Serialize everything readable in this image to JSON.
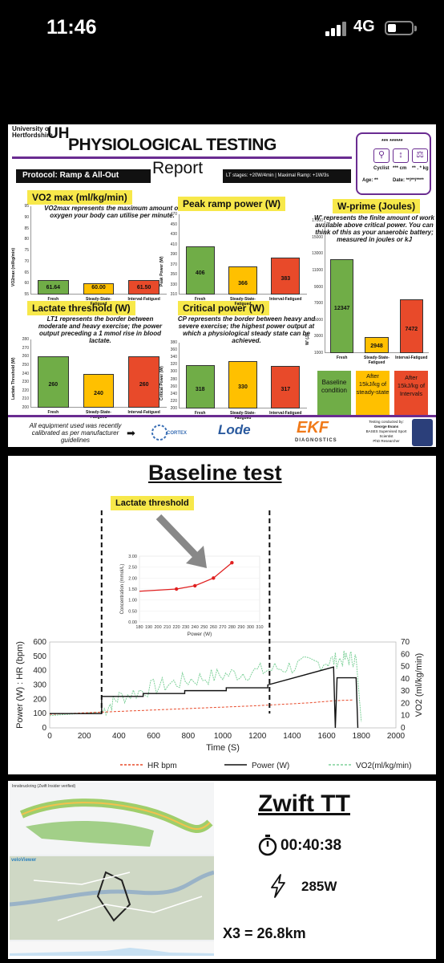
{
  "status": {
    "time": "11:46",
    "network": "4G"
  },
  "report": {
    "university": [
      "University of",
      "Hertfordshire"
    ],
    "uh_logo": "UH",
    "title": "PHYSIOLOGICAL TESTING",
    "subtitle": "Report",
    "protocol": "Protocol: Ramp & All-Out",
    "lt_stages": "LT stages: +20W/4min | Maximal Ramp: +1W/3s",
    "card": {
      "stars": "*** ******",
      "cyclist": "Cyclist",
      "cm": "*** cm",
      "kg": "** . * kg",
      "age": "Age: **",
      "date": "Date: **/**/****"
    },
    "colors": {
      "fresh": "#70ad47",
      "steady": "#ffc000",
      "interval": "#e84a2a",
      "purple": "#6a2c91",
      "yellow": "#f7e84a"
    },
    "categories": [
      "Fresh",
      "Steady-State-Fatigued",
      "Interval-Fatigued"
    ],
    "vo2max": {
      "title": "VO2 max (ml/kg/min)",
      "desc": "VO2max represents the maximum amount of oxygen your body can utilise per minute.",
      "ylabel": "VO2max (ml/kg/min)",
      "ticks": [
        "95",
        "90",
        "85",
        "80",
        "75",
        "70",
        "65",
        "60",
        "55"
      ],
      "ylim": [
        55,
        95
      ],
      "values": [
        61.64,
        60.0,
        61.5
      ],
      "labels": [
        "61.64",
        "60.00",
        "61.50"
      ]
    },
    "peakramp": {
      "title": "Peak ramp power (W)",
      "ylabel": "Peak Power (W)",
      "ticks": [
        "470",
        "450",
        "430",
        "410",
        "390",
        "370",
        "350",
        "330",
        "310"
      ],
      "ylim": [
        310,
        470
      ],
      "values": [
        406,
        366,
        383
      ],
      "labels": [
        "406",
        "366",
        "383"
      ]
    },
    "wprime": {
      "title": "W-prime (Joules)",
      "desc": "W' represents the finite amount of work available above critical power. You can think of this as your anaerobic battery; measured in joules or kJ",
      "ylabel": "W' (J)",
      "ticks": [
        "17000",
        "15000",
        "13000",
        "11000",
        "9000",
        "7000",
        "5000",
        "3000",
        "1000"
      ],
      "ylim": [
        1000,
        17000
      ],
      "values": [
        12347,
        2948,
        7472
      ],
      "labels": [
        "12347",
        "2948",
        "7472"
      ]
    },
    "lactate": {
      "title": "Lactate threshold (W)",
      "desc": "LT1 represents the border between moderate and heavy exercise; the power output preceding a 1 mmol rise in blood lactate.",
      "ylabel": "Lactate Threshold (W)",
      "ticks": [
        "280",
        "270",
        "260",
        "250",
        "240",
        "230",
        "220",
        "210",
        "200"
      ],
      "ylim": [
        200,
        280
      ],
      "values": [
        260,
        240,
        260
      ],
      "labels": [
        "260",
        "240",
        "260"
      ]
    },
    "critical": {
      "title": "Critical power (W)",
      "desc": "CP represents the border between heavy and severe exercise; the highest power output at which a physiological steady state can be achieved.",
      "ylabel": "Critical Power (W)",
      "ticks": [
        "380",
        "360",
        "340",
        "320",
        "300",
        "280",
        "260",
        "240",
        "220",
        "200"
      ],
      "ylim": [
        200,
        380
      ],
      "values": [
        318,
        330,
        317
      ],
      "labels": [
        "318",
        "330",
        "317"
      ]
    },
    "legend": {
      "baseline": "Baseline condition",
      "after_ss": "After 15kJ/kg of steady-state",
      "after_int": "After 15kJ/kg of Intervals"
    },
    "footer": {
      "note": "All equipment used was recently calibrated as per manufacturer guidelines",
      "arrow": "➡",
      "cortex": "CORTEX",
      "lode": "Lode",
      "ekf": "EKF",
      "diagnostics": "DIAGNOSTICS",
      "credit": [
        "Testing conducted by:",
        "George Evans",
        "BASES Supervised Sport Scientist",
        "PhD Researcher"
      ]
    }
  },
  "baseline": {
    "title": "Baseline test",
    "lactate_label": "Lactate threshold",
    "chart_data": [
      {
        "type": "line",
        "title": "",
        "xlabel": "Power (W)",
        "ylabel": "Concentration (mmol/L)",
        "xlim": [
          180,
          310
        ],
        "ylim": [
          0,
          3
        ],
        "x_ticks": [
          "180",
          "190",
          "200",
          "210",
          "220",
          "230",
          "240",
          "250",
          "260",
          "270",
          "280",
          "290",
          "300",
          "310"
        ],
        "y_ticks": [
          "0.00",
          "0.50",
          "1.00",
          "1.50",
          "2.00",
          "2.50",
          "3.00"
        ],
        "series": [
          {
            "x": [
              180,
              200,
              220,
              240,
              260,
              280
            ],
            "y": [
              1.4,
              1.45,
              1.5,
              1.65,
              2.0,
              2.7
            ]
          }
        ]
      },
      {
        "type": "line",
        "xlabel": "Time (S)",
        "ylabel": "Power (W) : HR (bpm)",
        "y2label": "VO2 (ml/kg/min)",
        "xlim": [
          0,
          2000
        ],
        "ylim": [
          0,
          600
        ],
        "y2lim": [
          0,
          70
        ],
        "x_ticks": [
          "0",
          "200",
          "400",
          "600",
          "800",
          "1000",
          "1200",
          "1400",
          "1600",
          "1800",
          "2000"
        ],
        "y_ticks": [
          "0",
          "100",
          "200",
          "300",
          "400",
          "500",
          "600"
        ],
        "y2_ticks": [
          "0",
          "10",
          "20",
          "30",
          "40",
          "50",
          "60",
          "70"
        ],
        "legend": [
          "HR bpm",
          "Power (W)",
          "VO2(ml/kg/min)"
        ],
        "lactate_markers_x": [
          300,
          1270
        ],
        "series": [
          {
            "name": "HR bpm",
            "color": "#e84a2a",
            "x": [
              0,
              300,
              600,
              900,
              1200,
              1500,
              1650,
              1750
            ],
            "y": [
              95,
              110,
              125,
              140,
              155,
              175,
              190,
              195
            ]
          },
          {
            "name": "Power (W)",
            "color": "#111111",
            "x": [
              0,
              300,
              300,
              540,
              540,
              780,
              780,
              1020,
              1020,
              1260,
              1260,
              1640,
              1650,
              1660,
              1770,
              1780
            ],
            "y": [
              100,
              100,
              220,
              220,
              240,
              240,
              260,
              260,
              280,
              280,
              300,
              425,
              0,
              350,
              350,
              0
            ]
          },
          {
            "name": "VO2(ml/kg/min)",
            "color": "#7fd19a",
            "x": [
              0,
              100,
              300,
              400,
              600,
              800,
              1000,
              1200,
              1400,
              1600,
              1700,
              1770,
              1800
            ],
            "y": [
              10,
              11,
              13,
              25,
              33,
              39,
              43,
              46,
              50,
              54,
              56,
              57,
              5
            ]
          }
        ]
      }
    ]
  },
  "zwift": {
    "title": "Zwift TT",
    "time": "00:40:38",
    "power": "285W",
    "distance": "X3 = 26.8km",
    "map_title": "Innsbruckring (Zwift Insider verified)",
    "veloviewer": "veloViewer"
  }
}
